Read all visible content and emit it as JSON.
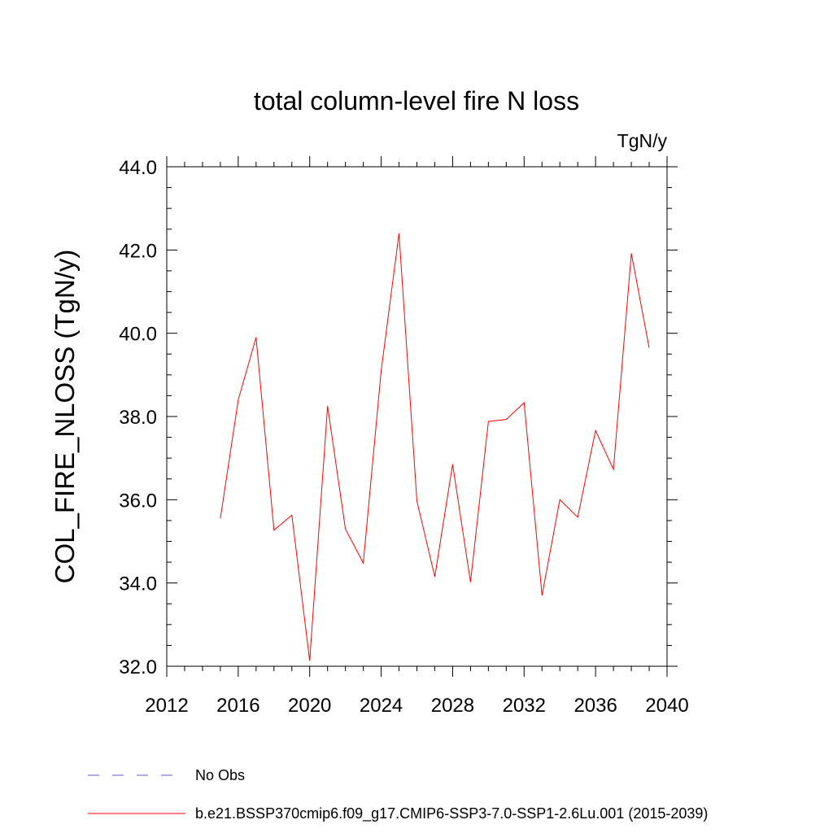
{
  "chart_data": {
    "type": "line",
    "title": "total column-level fire N loss",
    "units_label": "TgN/y",
    "ylabel": "COL_FIRE_NLOSS  (TgN/y)",
    "xlabel": "",
    "xlim": [
      2012,
      2040
    ],
    "ylim": [
      32.0,
      44.0
    ],
    "x_ticks": [
      2012,
      2016,
      2020,
      2024,
      2028,
      2032,
      2036,
      2040
    ],
    "x_tick_labels": [
      "2012",
      "2016",
      "2020",
      "2024",
      "2028",
      "2032",
      "2036",
      "2040"
    ],
    "y_ticks": [
      32.0,
      34.0,
      36.0,
      38.0,
      40.0,
      42.0,
      44.0
    ],
    "y_tick_labels": [
      "32.0",
      "34.0",
      "36.0",
      "38.0",
      "40.0",
      "42.0",
      "44.0"
    ],
    "grid": false,
    "legend_placement": "bottom",
    "series": [
      {
        "name": "b.e21.BSSP370cmip6.f09_g17.CMIP6-SSP3-7.0-SSP1-2.6Lu.001 (2015-2039)",
        "color": "#ff0000",
        "style": "solid",
        "x": [
          2015,
          2016,
          2017,
          2018,
          2019,
          2020,
          2021,
          2022,
          2023,
          2024,
          2025,
          2026,
          2027,
          2028,
          2029,
          2030,
          2031,
          2032,
          2033,
          2034,
          2035,
          2036,
          2037,
          2038,
          2039
        ],
        "y": [
          35.55,
          38.4,
          39.9,
          35.27,
          35.63,
          32.13,
          38.25,
          35.3,
          34.48,
          39.1,
          42.4,
          35.97,
          34.15,
          36.85,
          34.02,
          37.88,
          37.93,
          38.33,
          33.7,
          36.0,
          35.58,
          37.66,
          36.73,
          41.92,
          39.65
        ]
      }
    ],
    "legend": [
      {
        "label": "No Obs",
        "color": "#6655cc",
        "style": "dashed"
      },
      {
        "label": "b.e21.BSSP370cmip6.f09_g17.CMIP6-SSP3-7.0-SSP1-2.6Lu.001 (2015-2039)",
        "color": "#ff0000",
        "style": "solid"
      }
    ]
  }
}
